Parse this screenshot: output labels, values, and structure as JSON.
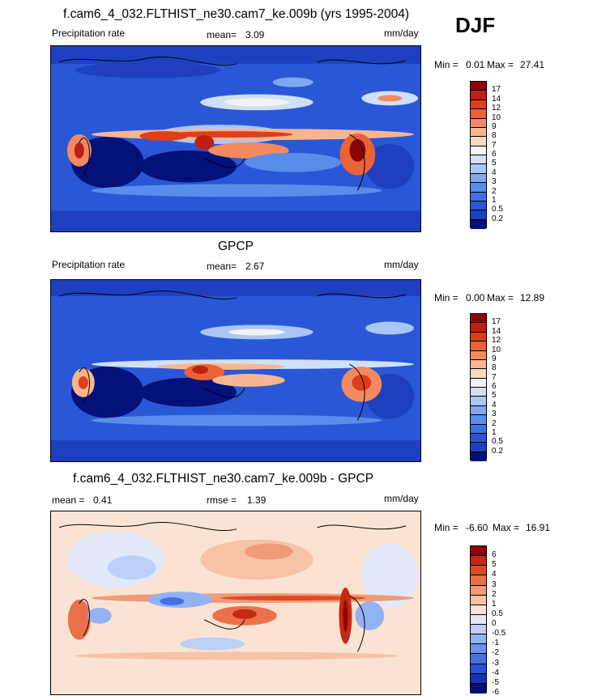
{
  "season": "DJF",
  "colors": {
    "precip": [
      "#04117a",
      "#1e3fbe",
      "#2a57d6",
      "#3f72e3",
      "#5a8ceb",
      "#7ea8f0",
      "#a9c6f5",
      "#d0e0f8",
      "#f3f3f3",
      "#fbd9c1",
      "#f8b690",
      "#f28a60",
      "#eb6236",
      "#dd3f1a",
      "#bd2010",
      "#8f0505"
    ],
    "diff": [
      "#04117a",
      "#1a32b2",
      "#2b52d2",
      "#4670e0",
      "#6b91eb",
      "#93b2f3",
      "#bccff6",
      "#e1e9f8",
      "#fbe3d3",
      "#f6c3a7",
      "#f19a78",
      "#ea714a",
      "#de4a27",
      "#c52814",
      "#8f0505"
    ]
  },
  "panels": [
    {
      "title": "f.cam6_4_032.FLTHIST_ne30.cam7_ke.009b (yrs 1995-2004)",
      "left_label": "Precipitation rate",
      "mean_label": "mean=",
      "mean_value": "3.09",
      "units": "mm/day",
      "min_label": "Min =",
      "min_value": "0.01",
      "max_label": "Max =",
      "max_value": "27.41",
      "cbar_labels": [
        "17",
        "14",
        "12",
        "10",
        "9",
        "8",
        "7",
        "6",
        "5",
        "4",
        "3",
        "2",
        "1",
        "0.5",
        "0.2"
      ]
    },
    {
      "title": "GPCP",
      "left_label": "Precipitation rate",
      "mean_label": "mean=",
      "mean_value": "2.67",
      "units": "mm/day",
      "min_label": "Min =",
      "min_value": "0.00",
      "max_label": "Max =",
      "max_value": "12.89",
      "cbar_labels": [
        "17",
        "14",
        "12",
        "10",
        "9",
        "8",
        "7",
        "6",
        "5",
        "4",
        "3",
        "2",
        "1",
        "0.5",
        "0.2"
      ]
    },
    {
      "title": "f.cam6_4_032.FLTHIST_ne30.cam7_ke.009b - GPCP",
      "mean_label": "mean =",
      "mean_value": "0.41",
      "rmse_label": "rmse =",
      "rmse_value": "1.39",
      "units": "mm/day",
      "min_label": "Min =",
      "min_value": "-6.60",
      "max_label": "Max =",
      "max_value": "16.91",
      "cbar_labels": [
        "6",
        "5",
        "4",
        "3",
        "2",
        "1",
        "0.5",
        "0",
        "-0.5",
        "-1",
        "-2",
        "-3",
        "-4",
        "-5",
        "-6"
      ]
    }
  ]
}
